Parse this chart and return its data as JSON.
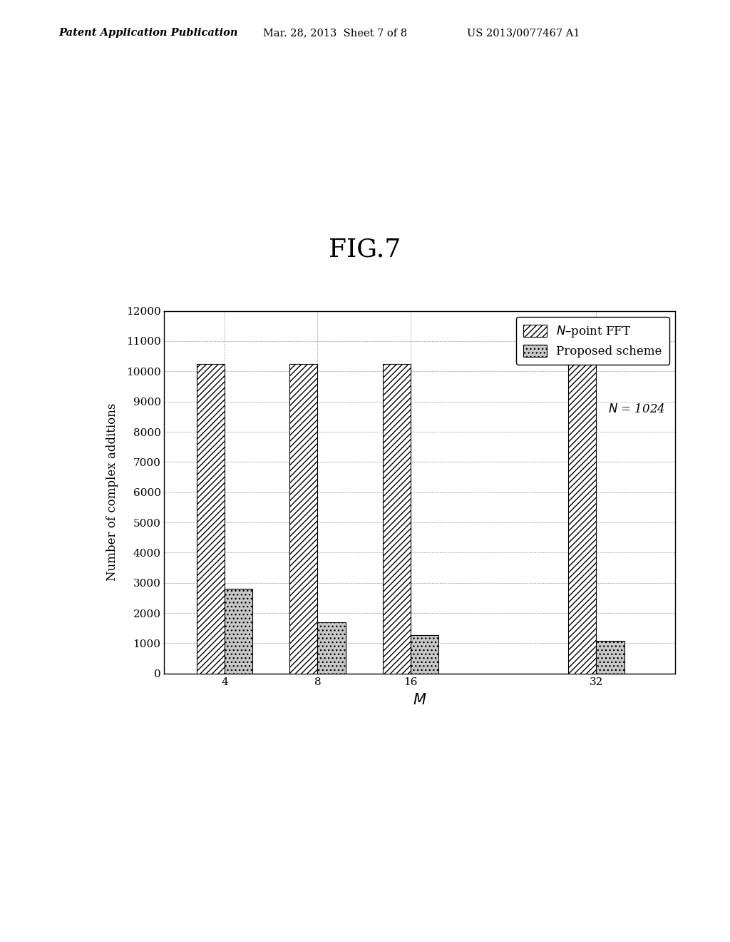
{
  "title": "FIG.7",
  "xlabel": "$M$",
  "ylabel": "Number of complex additions",
  "categories": [
    "4",
    "8",
    "16",
    "32"
  ],
  "nfft_values": [
    10240,
    10240,
    10240,
    10240
  ],
  "proposed_values": [
    2800,
    1700,
    1280,
    1080
  ],
  "ylim": [
    0,
    12000
  ],
  "yticks": [
    0,
    1000,
    2000,
    3000,
    4000,
    5000,
    6000,
    7000,
    8000,
    9000,
    10000,
    11000,
    12000
  ],
  "legend_label_fft": "$N$–point FFT",
  "legend_label_proposed": "Proposed scheme",
  "legend_label_n": "$N$ = 1024",
  "bar_width": 0.3,
  "background_color": "#ffffff",
  "header_text_left": "Patent Application Publication",
  "header_text_mid": "Mar. 28, 2013  Sheet 7 of 8",
  "header_text_right": "US 2013/0077467 A1",
  "x_positions": [
    0,
    1,
    2,
    4
  ],
  "xlim": [
    -0.65,
    4.85
  ],
  "title_fontsize": 26,
  "axis_fontsize": 12,
  "tick_fontsize": 11,
  "legend_fontsize": 12
}
